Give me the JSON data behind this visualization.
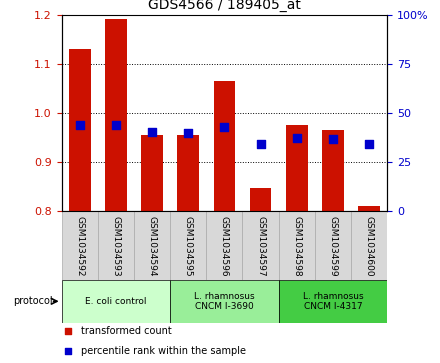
{
  "title": "GDS4566 / 189405_at",
  "samples": [
    "GSM1034592",
    "GSM1034593",
    "GSM1034594",
    "GSM1034595",
    "GSM1034596",
    "GSM1034597",
    "GSM1034598",
    "GSM1034599",
    "GSM1034600"
  ],
  "red_values": [
    1.13,
    1.19,
    0.955,
    0.955,
    1.065,
    0.845,
    0.975,
    0.965,
    0.81
  ],
  "blue_values": [
    0.975,
    0.975,
    0.96,
    0.958,
    0.97,
    0.935,
    0.948,
    0.945,
    0.935
  ],
  "ylim_left": [
    0.8,
    1.2
  ],
  "ylim_right": [
    0,
    100
  ],
  "yticks_left": [
    0.8,
    0.9,
    1.0,
    1.1,
    1.2
  ],
  "yticks_right": [
    0,
    25,
    50,
    75,
    100
  ],
  "ytick_labels_right": [
    "0",
    "25",
    "50",
    "75",
    "100%"
  ],
  "bar_bottom": 0.8,
  "bar_width": 0.6,
  "red_color": "#cc1100",
  "blue_color": "#0000cc",
  "blue_square_size": 30,
  "group_spans": [
    [
      0,
      2,
      "E. coli control",
      "#ccffcc"
    ],
    [
      3,
      5,
      "L. rhamnosus\nCNCM I-3690",
      "#99ee99"
    ],
    [
      6,
      8,
      "L. rhamnosus\nCNCM I-4317",
      "#44cc44"
    ]
  ],
  "legend_items": [
    {
      "label": "transformed count",
      "color": "#cc1100"
    },
    {
      "label": "percentile rank within the sample",
      "color": "#0000cc"
    }
  ],
  "tick_label_color_left": "#cc1100",
  "tick_label_color_right": "#0000cc",
  "gray_box_color": "#d8d8d8",
  "gray_box_edge": "#aaaaaa"
}
